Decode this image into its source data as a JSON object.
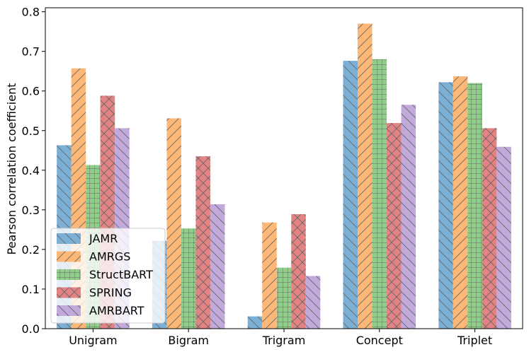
{
  "chart_data": {
    "type": "bar",
    "title": "",
    "xlabel": "",
    "ylabel": "Pearson correlation coefficient",
    "ylim": [
      0,
      0.81
    ],
    "yticks": [
      "0.0",
      "0.1",
      "0.2",
      "0.3",
      "0.4",
      "0.5",
      "0.6",
      "0.7",
      "0.8"
    ],
    "categories": [
      "Unigram",
      "Bigram",
      "Trigram",
      "Concept",
      "Triplet"
    ],
    "legend_position": "lower-left",
    "series": [
      {
        "name": "JAMR",
        "values": [
          0.463,
          0.222,
          0.031,
          0.676,
          0.622
        ],
        "color": "#7cafd4",
        "hatch": "backslash"
      },
      {
        "name": "AMRGS",
        "values": [
          0.657,
          0.531,
          0.268,
          0.77,
          0.637
        ],
        "color": "#fdb877",
        "hatch": "slash"
      },
      {
        "name": "StructBART",
        "values": [
          0.413,
          0.253,
          0.154,
          0.68,
          0.62
        ],
        "color": "#8fcd88",
        "hatch": "grid"
      },
      {
        "name": "SPRING",
        "values": [
          0.588,
          0.435,
          0.289,
          0.519,
          0.506
        ],
        "color": "#e48383",
        "hatch": "cross"
      },
      {
        "name": "AMRBART",
        "values": [
          0.506,
          0.314,
          0.133,
          0.565,
          0.459
        ],
        "color": "#c2a9dc",
        "hatch": "backslash"
      }
    ]
  }
}
